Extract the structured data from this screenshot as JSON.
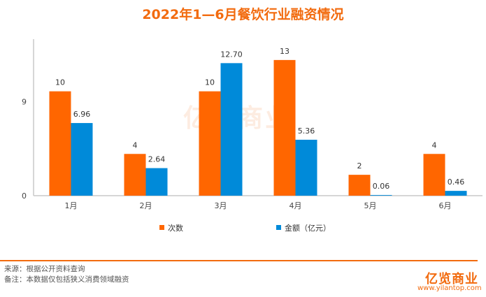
{
  "chart_data": {
    "type": "bar",
    "title": "2022年1—6月餐饮行业融资情况",
    "categories": [
      "1月",
      "2月",
      "3月",
      "4月",
      "5月",
      "6月"
    ],
    "series": [
      {
        "name": "次数",
        "values": [
          10,
          4,
          10,
          13,
          2,
          4
        ],
        "labels": [
          "10",
          "4",
          "10",
          "13",
          "2",
          "4"
        ],
        "color": "#ff6600"
      },
      {
        "name": "金额（亿元）",
        "values": [
          6.96,
          2.64,
          12.7,
          5.36,
          0.06,
          0.46
        ],
        "labels": [
          "6.96",
          "2.64",
          "12.70",
          "5.36",
          "0.06",
          "0.46"
        ],
        "color": "#008ad9"
      }
    ],
    "yticks": [
      "0",
      "9"
    ],
    "ylim": [
      0,
      15
    ],
    "grid": false,
    "legend": "bottom"
  },
  "footer": {
    "source": "来源：根据公开资料查询",
    "note": "备注：本数据仅包括狭义消费领域融资",
    "logo": "亿览商业",
    "website": "www.yilantop.com"
  }
}
